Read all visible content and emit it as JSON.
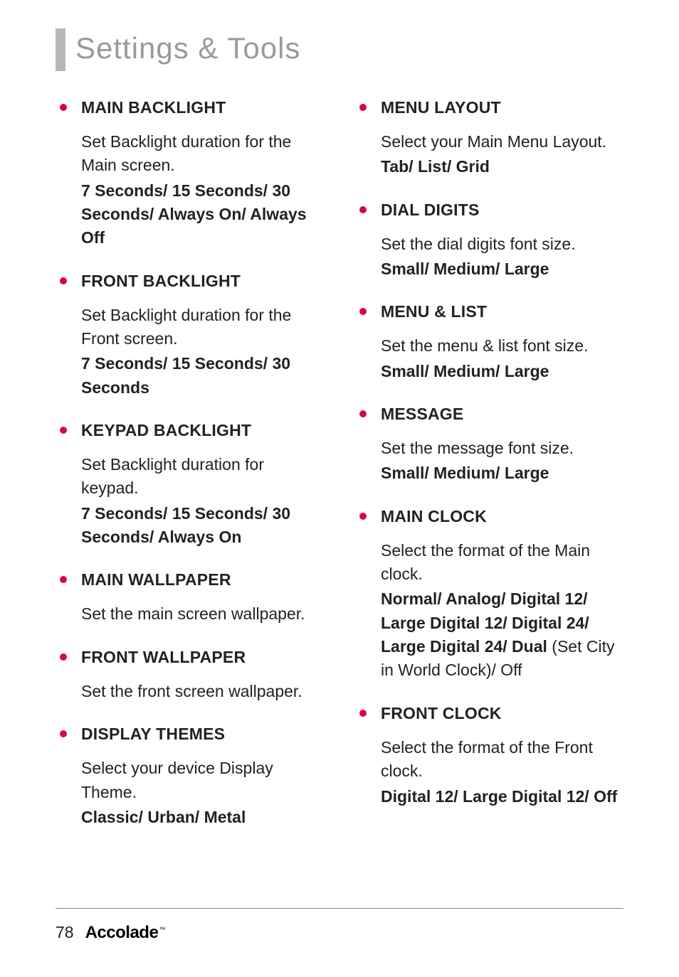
{
  "header": {
    "title": "Settings & Tools"
  },
  "accent_color": "#d9005b",
  "columns": {
    "left": [
      {
        "heading": "MAIN BACKLIGHT",
        "desc": "Set Backlight duration for the Main screen.",
        "opts": "7 Seconds/ 15 Seconds/ 30 Seconds/ Always On/ Always Off"
      },
      {
        "heading": "FRONT BACKLIGHT",
        "desc": "Set Backlight duration for the Front screen.",
        "opts": "7 Seconds/ 15 Seconds/ 30 Seconds"
      },
      {
        "heading": "KEYPAD BACKLIGHT",
        "desc": "Set Backlight duration for keypad.",
        "opts": "7 Seconds/ 15 Seconds/ 30 Seconds/ Always On"
      },
      {
        "heading": "MAIN WALLPAPER",
        "desc": "Set the main screen wallpaper.",
        "opts": ""
      },
      {
        "heading": "FRONT WALLPAPER",
        "desc": "Set the front screen wallpaper.",
        "opts": ""
      },
      {
        "heading": "DISPLAY THEMES",
        "desc": "Select your device Display Theme.",
        "opts": "Classic/ Urban/ Metal"
      }
    ],
    "right": [
      {
        "heading": "MENU LAYOUT",
        "desc": "Select your Main Menu Layout.",
        "opts": "Tab/ List/ Grid"
      },
      {
        "heading": "DIAL DIGITS",
        "desc": "Set the dial digits font size.",
        "opts": "Small/ Medium/ Large"
      },
      {
        "heading": "MENU & LIST",
        "desc": "Set the menu & list font size.",
        "opts": "Small/ Medium/ Large"
      },
      {
        "heading": "MESSAGE",
        "desc": "Set the message font size.",
        "opts": "Small/ Medium/ Large"
      },
      {
        "heading": "MAIN CLOCK",
        "desc": "Select the format of the Main clock.",
        "opts": "Normal/ Analog/ Digital 12/ Large Digital 12/ Digital 24/ Large Digital 24/ Dual",
        "opts_trail": " (Set City in World Clock)/ Off"
      },
      {
        "heading": "FRONT CLOCK",
        "desc": "Select the format of the Front clock.",
        "opts": "Digital 12/ Large Digital 12/ Off"
      }
    ]
  },
  "footer": {
    "page": "78",
    "brand": "Accolade",
    "tm": "™"
  }
}
